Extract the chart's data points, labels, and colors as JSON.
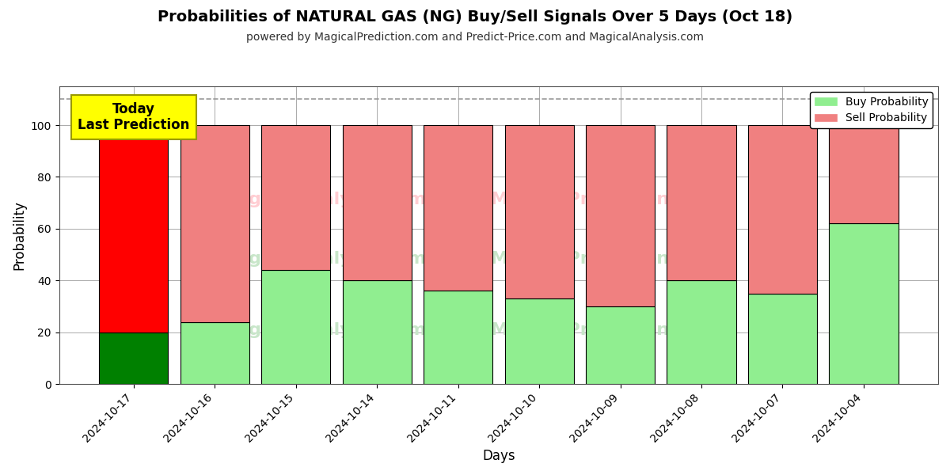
{
  "title": "Probabilities of NATURAL GAS (NG) Buy/Sell Signals Over 5 Days (Oct 18)",
  "subtitle": "powered by MagicalPrediction.com and Predict-Price.com and MagicalAnalysis.com",
  "xlabel": "Days",
  "ylabel": "Probability",
  "categories": [
    "2024-10-17",
    "2024-10-16",
    "2024-10-15",
    "2024-10-14",
    "2024-10-11",
    "2024-10-10",
    "2024-10-09",
    "2024-10-08",
    "2024-10-07",
    "2024-10-04"
  ],
  "buy_values": [
    20,
    24,
    44,
    40,
    36,
    33,
    30,
    40,
    35,
    62
  ],
  "sell_values": [
    80,
    76,
    56,
    60,
    64,
    67,
    70,
    60,
    65,
    38
  ],
  "today_buy_color": "#008000",
  "today_sell_color": "#ff0000",
  "buy_color": "#90ee90",
  "sell_color": "#f08080",
  "today_annotation": "Today\nLast Prediction",
  "annotation_bg": "#ffff00",
  "dashed_line_y": 110,
  "ylim": [
    0,
    115
  ],
  "yticks": [
    0,
    20,
    40,
    60,
    80,
    100
  ],
  "legend_buy_label": "Buy Probability",
  "legend_sell_label": "Sell Probability",
  "watermark_color_green": "#c8e6c9",
  "watermark_color_red": "#ffcdd2",
  "bar_edgecolor": "#000000",
  "grid_color": "#aaaaaa",
  "figsize": [
    12.0,
    6.0
  ],
  "dpi": 100
}
